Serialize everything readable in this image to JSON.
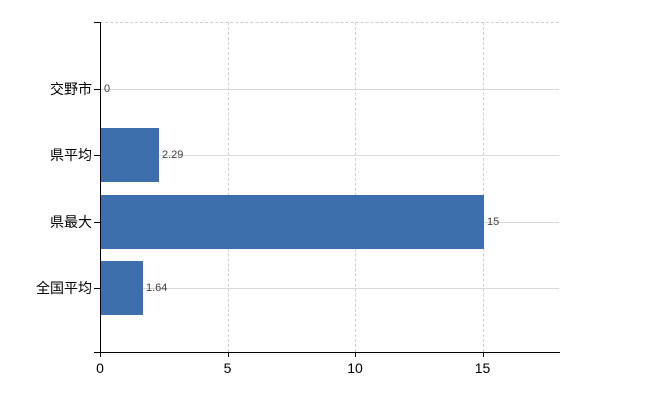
{
  "chart_data": {
    "type": "bar",
    "orientation": "horizontal",
    "title": "",
    "xlabel": "",
    "ylabel": "",
    "categories": [
      "交野市",
      "県平均",
      "県最大",
      "全国平均"
    ],
    "values": [
      0,
      2.29,
      15,
      1.64
    ],
    "value_labels": [
      "0",
      "2.29",
      "15",
      "1.64"
    ],
    "x_ticks": [
      0,
      5,
      10,
      15
    ],
    "x_tick_labels": [
      "0",
      "5",
      "10",
      "15"
    ],
    "xlim": [
      0,
      18
    ],
    "grid_vertical": "dashed",
    "grid_horizontal": "solid",
    "legend": false,
    "colors": {
      "bar": "#3e6fad",
      "axis": "#000000",
      "gridline_horizontal": "#d9d9d9",
      "gridline_vertical": "#cfcdcd",
      "value_label": "#404040",
      "category_label": "#000000",
      "tick_label": "#000000",
      "background": "#ffffff"
    }
  }
}
